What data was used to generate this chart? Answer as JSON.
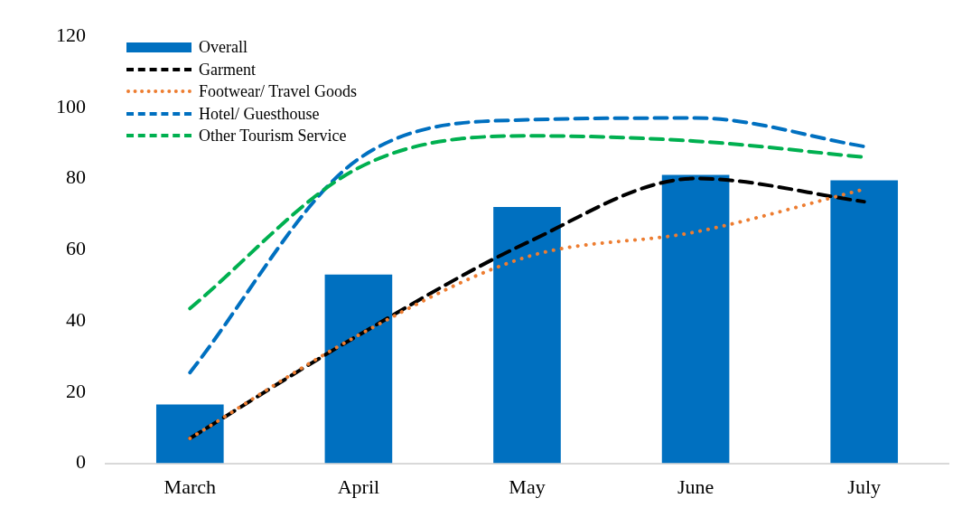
{
  "chart_data": {
    "type": "bar",
    "categories": [
      "March",
      "April",
      "May",
      "June",
      "July"
    ],
    "series": [
      {
        "name": "Overall",
        "color": "#0070c0",
        "values": [
          16.5,
          53,
          72,
          81,
          79.5
        ]
      },
      {
        "name": "Garment",
        "type": "line",
        "color": "#000000",
        "line_style": "dashed",
        "values": [
          7,
          36,
          62,
          80,
          73.5
        ]
      },
      {
        "name": "Footwear/ Travel Goods",
        "type": "line",
        "color": "#ed7d31",
        "line_style": "dotted",
        "values": [
          7,
          36,
          58,
          65,
          77
        ]
      },
      {
        "name": "Hotel/ Guesthouse",
        "type": "line",
        "color": "#0070c0",
        "line_style": "dashed",
        "values": [
          25.5,
          85.5,
          96.5,
          97,
          89
        ]
      },
      {
        "name": "Other Tourism Service",
        "type": "line",
        "color": "#00b050",
        "line_style": "dashed",
        "values": [
          43.5,
          83,
          92,
          90.5,
          86
        ]
      }
    ],
    "ylim": [
      0,
      120
    ],
    "yticks": [
      0,
      20,
      40,
      60,
      80,
      100,
      120
    ],
    "grid": false,
    "legend": "top left",
    "marker": "none"
  }
}
